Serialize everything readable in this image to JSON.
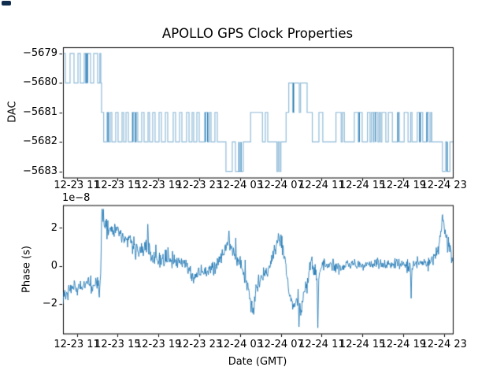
{
  "title": "APOLLO GPS Clock Properties",
  "decorations": {
    "corner_mark_color": "#112d4e"
  },
  "colors": {
    "line": "#1f77b4",
    "spine": "#000000",
    "background": "#ffffff",
    "text": "#000000"
  },
  "xaxis": {
    "label": "Date (GMT)",
    "xlim_hours": [
      9.64,
      47.87
    ],
    "tick_hours": [
      11,
      15,
      19,
      23,
      27,
      31,
      35,
      39,
      43,
      47
    ],
    "tick_labels": [
      "12-23 11",
      "12-23 15",
      "12-23 19",
      "12-23 23",
      "12-24 03",
      "12-24 07",
      "12-24 11",
      "12-24 15",
      "12-24 19",
      "12-24 23"
    ]
  },
  "chart_data": [
    {
      "type": "step-line",
      "ylabel": "DAC",
      "ytick_values": [
        -5679,
        -5680,
        -5681,
        -5682,
        -5683
      ],
      "ytick_labels": [
        "−5679",
        "−5680",
        "−5681",
        "−5682",
        "−5683"
      ],
      "ylim": [
        -5683.21,
        -5678.79
      ],
      "line_alpha": 0.5,
      "steps": [
        [
          9.64,
          -5679
        ],
        [
          9.87,
          -5680
        ],
        [
          10.33,
          -5679
        ],
        [
          10.72,
          -5680
        ],
        [
          11.11,
          -5679
        ],
        [
          11.34,
          -5680
        ],
        [
          11.72,
          -5679
        ],
        [
          11.88,
          -5680
        ],
        [
          12.03,
          -5679
        ],
        [
          12.34,
          -5680
        ],
        [
          12.65,
          -5679
        ],
        [
          13.04,
          -5680
        ],
        [
          13.25,
          -5679
        ],
        [
          13.35,
          -5680
        ],
        [
          13.42,
          -5681
        ],
        [
          13.63,
          -5682
        ],
        [
          13.96,
          -5681
        ],
        [
          14.12,
          -5682
        ],
        [
          14.27,
          -5681
        ],
        [
          14.43,
          -5682
        ],
        [
          14.81,
          -5681
        ],
        [
          15.04,
          -5682
        ],
        [
          15.43,
          -5681
        ],
        [
          15.59,
          -5682
        ],
        [
          15.82,
          -5681
        ],
        [
          16.05,
          -5682
        ],
        [
          16.43,
          -5681
        ],
        [
          16.67,
          -5682
        ],
        [
          16.82,
          -5681
        ],
        [
          16.97,
          -5682
        ],
        [
          17.36,
          -5681
        ],
        [
          17.59,
          -5682
        ],
        [
          17.98,
          -5681
        ],
        [
          18.13,
          -5682
        ],
        [
          18.44,
          -5681
        ],
        [
          18.67,
          -5682
        ],
        [
          19.06,
          -5681
        ],
        [
          19.29,
          -5682
        ],
        [
          19.68,
          -5681
        ],
        [
          19.91,
          -5682
        ],
        [
          20.45,
          -5681
        ],
        [
          20.68,
          -5682
        ],
        [
          21.07,
          -5681
        ],
        [
          21.3,
          -5682
        ],
        [
          21.76,
          -5681
        ],
        [
          22.0,
          -5682
        ],
        [
          22.3,
          -5681
        ],
        [
          22.46,
          -5682
        ],
        [
          22.77,
          -5681
        ],
        [
          23.0,
          -5682
        ],
        [
          23.54,
          -5681
        ],
        [
          23.85,
          -5682
        ],
        [
          24.0,
          -5681
        ],
        [
          24.16,
          -5682
        ],
        [
          24.54,
          -5681
        ],
        [
          24.77,
          -5682
        ],
        [
          25.62,
          -5683
        ],
        [
          26.24,
          -5682
        ],
        [
          26.55,
          -5683
        ],
        [
          27.32,
          -5682
        ],
        [
          28.04,
          -5681
        ],
        [
          29.2,
          -5682
        ],
        [
          29.48,
          -5681
        ],
        [
          29.72,
          -5682
        ],
        [
          30.62,
          -5683
        ],
        [
          30.74,
          -5682
        ],
        [
          30.87,
          -5683
        ],
        [
          31.01,
          -5682
        ],
        [
          31.52,
          -5681
        ],
        [
          31.78,
          -5680
        ],
        [
          32.19,
          -5681
        ],
        [
          32.3,
          -5680
        ],
        [
          32.81,
          -5681
        ],
        [
          32.94,
          -5680
        ],
        [
          33.58,
          -5681
        ],
        [
          34.09,
          -5682
        ],
        [
          34.74,
          -5681
        ],
        [
          35.12,
          -5682
        ],
        [
          36.41,
          -5681
        ],
        [
          36.92,
          -5682
        ],
        [
          37.05,
          -5681
        ],
        [
          37.23,
          -5682
        ],
        [
          38.21,
          -5681
        ],
        [
          38.6,
          -5682
        ],
        [
          38.67,
          -5681
        ],
        [
          38.98,
          -5682
        ],
        [
          39.5,
          -5681
        ],
        [
          39.75,
          -5682
        ],
        [
          39.88,
          -5681
        ],
        [
          40.06,
          -5682
        ],
        [
          40.14,
          -5681
        ],
        [
          40.52,
          -5682
        ],
        [
          40.65,
          -5681
        ],
        [
          40.78,
          -5682
        ],
        [
          40.91,
          -5681
        ],
        [
          41.3,
          -5682
        ],
        [
          41.55,
          -5681
        ],
        [
          41.94,
          -5682
        ],
        [
          42.45,
          -5681
        ],
        [
          42.63,
          -5682
        ],
        [
          43.1,
          -5681
        ],
        [
          43.48,
          -5682
        ],
        [
          43.74,
          -5681
        ],
        [
          43.87,
          -5682
        ],
        [
          44.38,
          -5681
        ],
        [
          44.59,
          -5682
        ],
        [
          44.72,
          -5681
        ],
        [
          44.92,
          -5682
        ],
        [
          45.29,
          -5681
        ],
        [
          45.54,
          -5682
        ],
        [
          45.7,
          -5681
        ],
        [
          45.81,
          -5682
        ],
        [
          46.85,
          -5683
        ],
        [
          47.16,
          -5682
        ],
        [
          47.32,
          -5683
        ],
        [
          47.59,
          -5682
        ]
      ],
      "dark_verticals": [
        [
          11.9,
          -5679,
          -5680
        ],
        [
          12.05,
          -5679,
          -5680
        ],
        [
          14.05,
          -5681,
          -5682
        ],
        [
          16.5,
          -5681,
          -5682
        ],
        [
          16.78,
          -5681,
          -5682
        ],
        [
          23.6,
          -5681,
          -5682
        ],
        [
          23.82,
          -5681,
          -5682
        ],
        [
          26.9,
          -5682,
          -5683
        ],
        [
          27.1,
          -5682,
          -5683
        ],
        [
          32.22,
          -5680,
          -5681
        ],
        [
          38.7,
          -5681,
          -5682
        ],
        [
          40.3,
          -5681,
          -5682
        ],
        [
          42.5,
          -5681,
          -5682
        ],
        [
          44.65,
          -5681,
          -5682
        ],
        [
          45.35,
          -5681,
          -5682
        ],
        [
          47.3,
          -5682,
          -5683
        ]
      ]
    },
    {
      "type": "line",
      "ylabel": "Phase (s)",
      "offset_text": "1e−8",
      "unit_scale": "1e-8",
      "ytick_values": [
        -2,
        0,
        2
      ],
      "ytick_labels": [
        "−2",
        "0",
        "2"
      ],
      "ylim": [
        -3.55,
        3.2
      ],
      "line_alpha": 0.85,
      "noise_seed": 20231224,
      "trend": [
        [
          9.64,
          -1.7
        ],
        [
          10.03,
          -1.25
        ],
        [
          11.19,
          -1.15
        ],
        [
          12.11,
          -0.95
        ],
        [
          12.57,
          -1.25
        ],
        [
          12.88,
          -0.5
        ],
        [
          13.19,
          -1.5
        ],
        [
          13.35,
          -0.3
        ],
        [
          13.46,
          2.9
        ],
        [
          13.73,
          2.2
        ],
        [
          14.27,
          1.95
        ],
        [
          15.04,
          1.75
        ],
        [
          15.82,
          1.35
        ],
        [
          16.59,
          0.95
        ],
        [
          17.36,
          0.7
        ],
        [
          17.9,
          1.0
        ],
        [
          18.29,
          0.5
        ],
        [
          18.9,
          0.4
        ],
        [
          20.06,
          0.35
        ],
        [
          21.22,
          0.2
        ],
        [
          22.0,
          -0.2
        ],
        [
          22.54,
          -0.7
        ],
        [
          23.0,
          -0.35
        ],
        [
          23.7,
          -0.2
        ],
        [
          24.47,
          -0.1
        ],
        [
          25.32,
          0.75
        ],
        [
          25.86,
          1.1
        ],
        [
          26.47,
          0.7
        ],
        [
          27.01,
          0.15
        ],
        [
          27.55,
          -0.8
        ],
        [
          28.02,
          -1.8
        ],
        [
          28.33,
          -2.25
        ],
        [
          28.64,
          -1.0
        ],
        [
          28.95,
          -0.55
        ],
        [
          29.56,
          -0.4
        ],
        [
          30.1,
          0.3
        ],
        [
          30.49,
          1.1
        ],
        [
          30.8,
          1.5
        ],
        [
          31.11,
          1.05
        ],
        [
          31.42,
          0.2
        ],
        [
          31.72,
          -0.9
        ],
        [
          32.03,
          -1.8
        ],
        [
          32.34,
          -2.1
        ],
        [
          32.65,
          -1.6
        ],
        [
          32.96,
          -2.2
        ],
        [
          33.27,
          -1.5
        ],
        [
          33.58,
          -0.6
        ],
        [
          33.97,
          0.1
        ],
        [
          34.35,
          -0.2
        ],
        [
          34.66,
          -0.7
        ],
        [
          34.97,
          -0.2
        ],
        [
          35.51,
          0.1
        ],
        [
          36.67,
          -0.1
        ],
        [
          37.83,
          0.15
        ],
        [
          38.98,
          0.0
        ],
        [
          40.14,
          0.1
        ],
        [
          41.3,
          0.05
        ],
        [
          42.45,
          0.1
        ],
        [
          43.61,
          0.0
        ],
        [
          44.77,
          0.15
        ],
        [
          45.77,
          0.3
        ],
        [
          46.31,
          0.7
        ],
        [
          46.62,
          1.4
        ],
        [
          46.85,
          2.4
        ],
        [
          47.08,
          1.9
        ],
        [
          47.32,
          1.3
        ],
        [
          47.62,
          1.0
        ],
        [
          47.86,
          0.3
        ]
      ],
      "noise_amp": [
        [
          9.64,
          0.5
        ],
        [
          12.0,
          0.45
        ],
        [
          13.5,
          0.55
        ],
        [
          15.0,
          0.5
        ],
        [
          18.0,
          0.55
        ],
        [
          22.0,
          0.5
        ],
        [
          26.0,
          0.45
        ],
        [
          29.0,
          0.55
        ],
        [
          31.0,
          0.5
        ],
        [
          34.0,
          0.6
        ],
        [
          35.5,
          0.45
        ],
        [
          38.0,
          0.32
        ],
        [
          42.0,
          0.33
        ],
        [
          45.0,
          0.35
        ],
        [
          46.8,
          0.45
        ],
        [
          47.86,
          0.5
        ]
      ],
      "spikes": [
        [
          13.46,
          3.0
        ],
        [
          17.95,
          2.2
        ],
        [
          25.9,
          1.85
        ],
        [
          28.33,
          -2.55
        ],
        [
          32.8,
          -3.2
        ],
        [
          34.62,
          -3.25
        ],
        [
          43.8,
          -1.7
        ],
        [
          46.85,
          2.7
        ]
      ]
    }
  ]
}
